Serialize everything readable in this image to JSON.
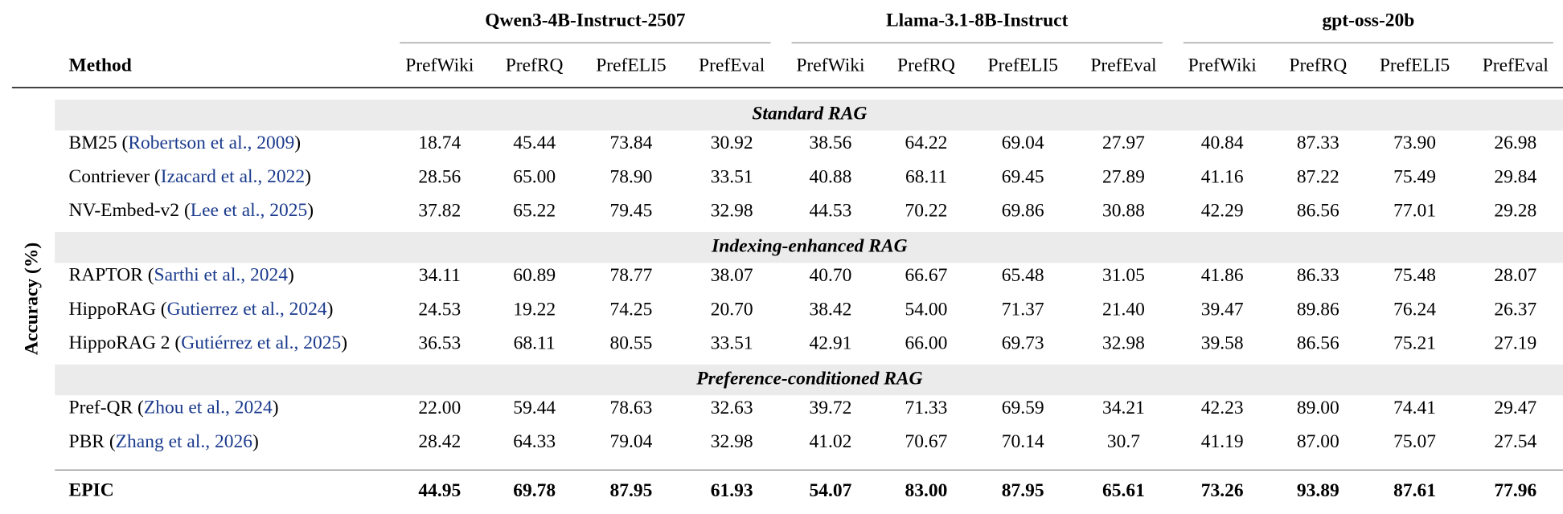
{
  "axis_label": "Accuracy (%)",
  "header": {
    "method": "Method",
    "groups": [
      {
        "name": "Qwen3-4B-Instruct-2507",
        "columns": [
          "PrefWiki",
          "PrefRQ",
          "PrefELI5",
          "PrefEval"
        ]
      },
      {
        "name": "Llama-3.1-8B-Instruct",
        "columns": [
          "PrefWiki",
          "PrefRQ",
          "PrefELI5",
          "PrefEval"
        ]
      },
      {
        "name": "gpt-oss-20b",
        "columns": [
          "PrefWiki",
          "PrefRQ",
          "PrefELI5",
          "PrefEval"
        ]
      }
    ]
  },
  "sections": [
    {
      "title": "Standard RAG",
      "rows": [
        {
          "method": "BM25",
          "citation": "(Robertson et al., 2009)",
          "values": [
            "18.74",
            "45.44",
            "73.84",
            "30.92",
            "38.56",
            "64.22",
            "69.04",
            "27.97",
            "40.84",
            "87.33",
            "73.90",
            "26.98"
          ]
        },
        {
          "method": "Contriever",
          "citation": "(Izacard et al., 2022)",
          "values": [
            "28.56",
            "65.00",
            "78.90",
            "33.51",
            "40.88",
            "68.11",
            "69.45",
            "27.89",
            "41.16",
            "87.22",
            "75.49",
            "29.84"
          ]
        },
        {
          "method": "NV-Embed-v2",
          "citation": "(Lee et al., 2025)",
          "values": [
            "37.82",
            "65.22",
            "79.45",
            "32.98",
            "44.53",
            "70.22",
            "69.86",
            "30.88",
            "42.29",
            "86.56",
            "77.01",
            "29.28"
          ]
        }
      ]
    },
    {
      "title": "Indexing-enhanced RAG",
      "rows": [
        {
          "method": "RAPTOR",
          "citation": "(Sarthi et al., 2024)",
          "values": [
            "34.11",
            "60.89",
            "78.77",
            "38.07",
            "40.70",
            "66.67",
            "65.48",
            "31.05",
            "41.86",
            "86.33",
            "75.48",
            "28.07"
          ]
        },
        {
          "method": "HippoRAG",
          "citation": "(Gutierrez et al., 2024)",
          "values": [
            "24.53",
            "19.22",
            "74.25",
            "20.70",
            "38.42",
            "54.00",
            "71.37",
            "21.40",
            "39.47",
            "89.86",
            "76.24",
            "26.37"
          ]
        },
        {
          "method": "HippoRAG 2",
          "citation": "(Gutiérrez et al., 2025)",
          "values": [
            "36.53",
            "68.11",
            "80.55",
            "33.51",
            "42.91",
            "66.00",
            "69.73",
            "32.98",
            "39.58",
            "86.56",
            "75.21",
            "27.19"
          ]
        }
      ]
    },
    {
      "title": "Preference-conditioned RAG",
      "rows": [
        {
          "method": "Pref-QR",
          "citation": "(Zhou et al., 2024)",
          "values": [
            "22.00",
            "59.44",
            "78.63",
            "32.63",
            "39.72",
            "71.33",
            "69.59",
            "34.21",
            "42.23",
            "89.00",
            "74.41",
            "29.47"
          ]
        },
        {
          "method": "PBR",
          "citation": "(Zhang et al., 2026)",
          "values": [
            "28.42",
            "64.33",
            "79.04",
            "32.98",
            "41.02",
            "70.67",
            "70.14",
            "30.7",
            "41.19",
            "87.00",
            "75.07",
            "27.54"
          ]
        }
      ]
    }
  ],
  "final_row": {
    "method": "EPIC",
    "values": [
      "44.95",
      "69.78",
      "87.95",
      "61.93",
      "54.07",
      "83.00",
      "87.95",
      "65.61",
      "73.26",
      "93.89",
      "87.61",
      "77.96"
    ]
  }
}
